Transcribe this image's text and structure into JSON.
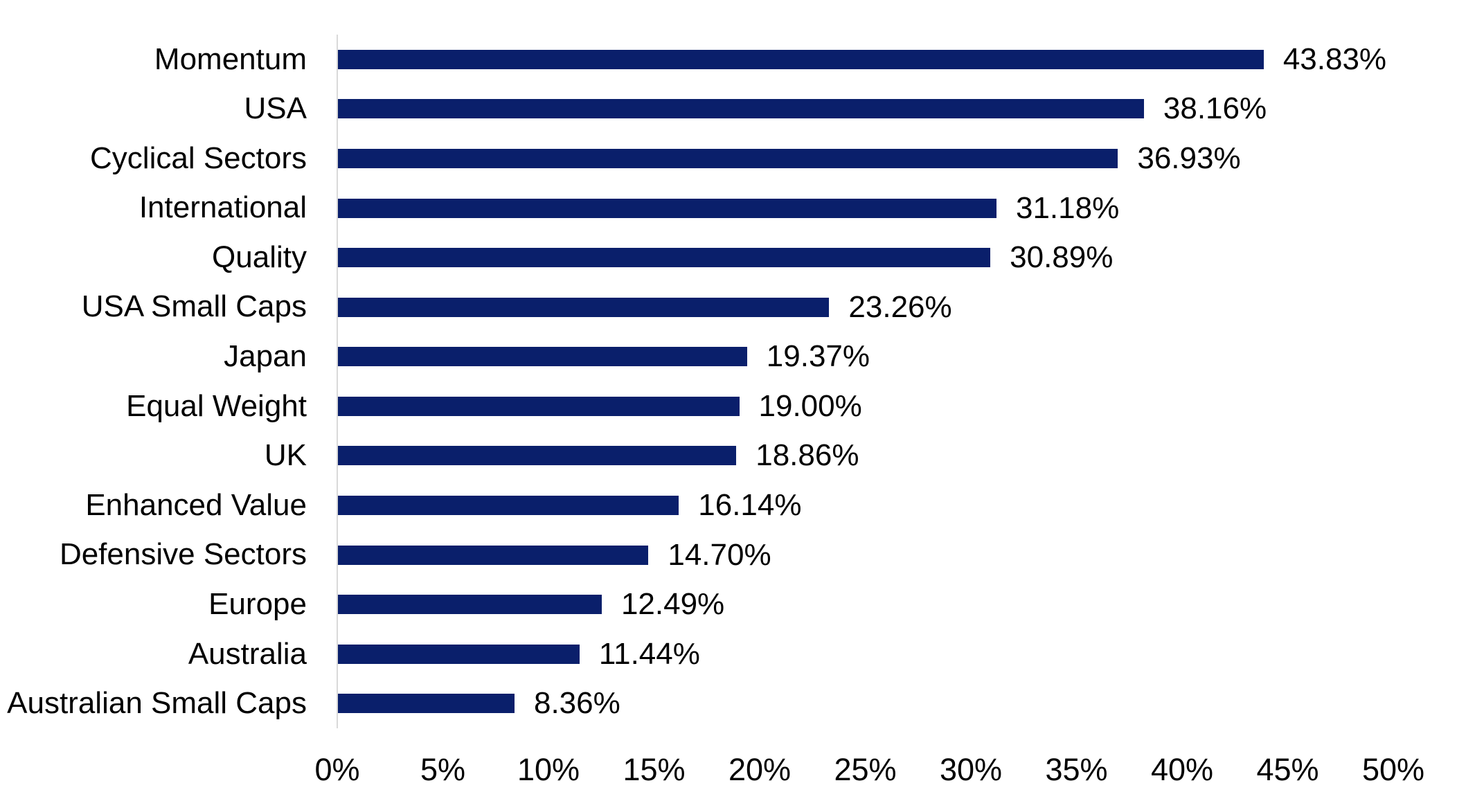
{
  "chart_data": {
    "type": "bar",
    "orientation": "horizontal",
    "title": "",
    "categories": [
      "Momentum",
      "USA",
      "Cyclical Sectors",
      "International",
      "Quality",
      "USA Small Caps",
      "Japan",
      "Equal Weight",
      "UK",
      "Enhanced Value",
      "Defensive Sectors",
      "Europe",
      "Australia",
      "Australian Small Caps"
    ],
    "values": [
      43.83,
      38.16,
      36.93,
      31.18,
      30.89,
      23.26,
      19.37,
      19.0,
      18.86,
      16.14,
      14.7,
      12.49,
      11.44,
      8.36
    ],
    "value_labels": [
      "43.83%",
      "38.16%",
      "36.93%",
      "31.18%",
      "30.89%",
      "23.26%",
      "19.37%",
      "19.00%",
      "18.86%",
      "16.14%",
      "14.70%",
      "12.49%",
      "11.44%",
      "8.36%"
    ],
    "x_tick_labels": [
      "0%",
      "5%",
      "10%",
      "15%",
      "20%",
      "25%",
      "30%",
      "35%",
      "40%",
      "45%",
      "50%"
    ],
    "xlim": [
      0,
      50
    ],
    "xlabel": "",
    "ylabel": "",
    "grid": false,
    "legend": false,
    "colors": {
      "bar": "#0a1f6b",
      "axis_line": "#d9d9d9",
      "text": "#000000",
      "background": "#ffffff"
    }
  }
}
